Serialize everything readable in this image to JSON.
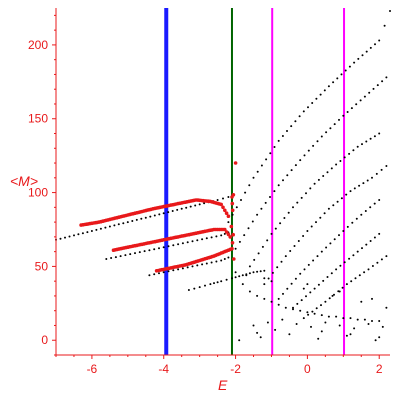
{
  "chart_data": {
    "type": "scatter",
    "title": "",
    "xlabel": "E",
    "ylabel": "<M>",
    "xlim": [
      -7,
      2.3
    ],
    "ylim": [
      -10,
      225
    ],
    "grid": false,
    "x_ticks": [
      -6,
      -4,
      -2,
      0,
      2
    ],
    "x_tick_labels": [
      "-6",
      "-4",
      "-2",
      "0",
      "2"
    ],
    "y_ticks": [
      0,
      50,
      100,
      150,
      200
    ],
    "y_tick_labels": [
      "0",
      "50",
      "100",
      "150",
      "200"
    ],
    "vertical_lines": [
      {
        "x": -3.93,
        "color": "#1a1aff"
      },
      {
        "x": -2.1,
        "color": "#006400"
      },
      {
        "x": -0.98,
        "color": "#ff00ff"
      },
      {
        "x": 1.02,
        "color": "#ff00ff"
      }
    ],
    "series": [
      {
        "color": "#e8191b",
        "curves": [
          {
            "x": [
              -6.3,
              -5.8,
              -5.3,
              -4.8,
              -4.3,
              -3.9,
              -3.5,
              -3.1,
              -2.7,
              -2.4,
              -2.2
            ],
            "y": [
              78,
              80,
              83,
              86,
              89,
              91,
              93,
              95,
              94,
              92,
              84
            ]
          },
          {
            "x": [
              -5.4,
              -5.0,
              -4.6,
              -4.2,
              -3.8,
              -3.4,
              -3.0,
              -2.6,
              -2.3,
              -2.15
            ],
            "y": [
              61,
              63,
              65,
              67,
              69,
              71,
              73,
              75,
              75,
              70
            ]
          },
          {
            "x": [
              -4.2,
              -3.8,
              -3.4,
              -3.0,
              -2.6,
              -2.3,
              -2.1
            ],
            "y": [
              47,
              49,
              51,
              54,
              57,
              60,
              62
            ]
          },
          {
            "x": [
              -2.1,
              -2.08,
              -2.05,
              -2.12,
              -2.0
            ],
            "y": [
              97,
              88,
              55,
              77,
              120
            ]
          }
        ]
      },
      {
        "color": "#000000",
        "curves": [
          {
            "x": [
              -7.0,
              -6.5,
              -6.0,
              -5.5,
              -5.0,
              -4.5,
              -4.0,
              -3.5,
              -3.0,
              -2.5,
              -2.2
            ],
            "y": [
              68,
              71,
              74,
              77,
              80,
              83,
              86,
              89,
              92,
              95,
              97
            ]
          },
          {
            "x": [
              -5.6,
              -5.2,
              -4.8,
              -4.4,
              -4.0,
              -3.6,
              -3.2,
              -2.8,
              -2.4,
              -2.2
            ],
            "y": [
              55,
              57,
              59,
              61,
              63,
              65,
              67,
              69,
              71,
              73
            ]
          },
          {
            "x": [
              -4.4,
              -4.0,
              -3.6,
              -3.2,
              -2.8,
              -2.4,
              -2.2
            ],
            "y": [
              44,
              46,
              48,
              50,
              52,
              54,
              56
            ]
          },
          {
            "x": [
              -3.3,
              -3.0,
              -2.7,
              -2.4,
              -2.1,
              -1.8,
              -1.5,
              -1.2
            ],
            "y": [
              34,
              36,
              38,
              40,
              42,
              44,
              46,
              47
            ]
          },
          {
            "x": [
              -2.2,
              -1.5,
              -0.8,
              -0.1,
              0.6,
              1.3,
              2.0,
              2.3
            ],
            "y": [
              80,
              110,
              135,
              155,
              172,
              188,
              203,
              223
            ]
          },
          {
            "x": [
              -2.0,
              -1.4,
              -0.8,
              -0.2,
              0.4,
              1.0,
              1.6,
              2.2
            ],
            "y": [
              62,
              85,
              105,
              122,
              138,
              152,
              165,
              178
            ]
          },
          {
            "x": [
              -1.6,
              -1.0,
              -0.4,
              0.2,
              0.8,
              1.4,
              2.0
            ],
            "y": [
              50,
              72,
              90,
              106,
              119,
              131,
              140
            ]
          },
          {
            "x": [
              -1.2,
              -0.6,
              0.0,
              0.6,
              1.2,
              1.8,
              2.2
            ],
            "y": [
              38,
              57,
              74,
              89,
              101,
              110,
              118
            ]
          },
          {
            "x": [
              -0.8,
              -0.2,
              0.4,
              1.0,
              1.5,
              2.0
            ],
            "y": [
              28,
              45,
              60,
              74,
              85,
              95
            ]
          },
          {
            "x": [
              -0.4,
              0.2,
              0.8,
              1.4,
              2.0
            ],
            "y": [
              22,
              35,
              48,
              60,
              72
            ]
          },
          {
            "x": [
              -0.1,
              0.5,
              1.1,
              1.7,
              2.2
            ],
            "y": [
              15,
              26,
              38,
              48,
              57
            ]
          }
        ],
        "points": {
          "x": [
            -1.8,
            -1.6,
            -1.4,
            -1.2,
            -1.0,
            -0.8,
            -0.6,
            -0.4,
            -0.2,
            0.0,
            0.2,
            0.4,
            0.6,
            0.8,
            1.0,
            1.2,
            1.4,
            1.6,
            1.8,
            2.0,
            -1.5,
            -1.1,
            -0.7,
            -0.3,
            0.1,
            0.5,
            0.9,
            1.3,
            1.7,
            2.1,
            -1.9,
            -1.3,
            -0.5,
            0.3,
            1.1,
            1.9,
            -2.0,
            -1.7,
            -1.0,
            -0.1,
            0.7,
            1.5,
            2.2,
            -1.4,
            -0.9,
            0.4,
            1.2,
            2.0,
            -1.2,
            0.0,
            0.9,
            1.8
          ],
          "y": [
            38,
            33,
            30,
            28,
            26,
            24,
            22,
            21,
            20,
            19,
            18,
            17,
            16,
            16,
            15,
            15,
            14,
            14,
            13,
            13,
            10,
            12,
            14,
            11,
            9,
            12,
            10,
            8,
            11,
            9,
            0,
            2,
            4,
            1,
            3,
            0,
            46,
            44,
            40,
            35,
            30,
            26,
            22,
            5,
            7,
            6,
            4,
            2,
            42,
            38,
            33,
            28
          ]
        }
      }
    ]
  }
}
